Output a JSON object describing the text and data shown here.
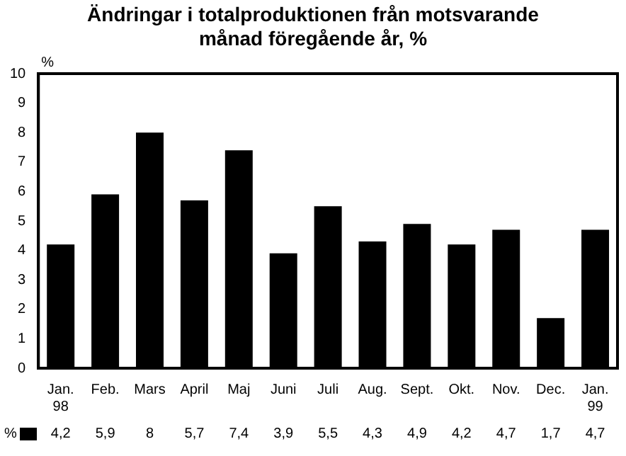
{
  "chart_data": {
    "type": "bar",
    "title": "Ändringar i totalproduktionen från motsvarande månad föregående år, %",
    "ylabel": "%",
    "categories": [
      "Jan.\n98",
      "Feb.",
      "Mars",
      "April",
      "Maj",
      "Juni",
      "Juli",
      "Aug.",
      "Sept.",
      "Okt.",
      "Nov.",
      "Dec.",
      "Jan.\n99"
    ],
    "series": [
      {
        "name": "%",
        "color": "#000000",
        "values": [
          4.2,
          5.9,
          8,
          5.7,
          7.4,
          3.9,
          5.5,
          4.3,
          4.9,
          4.2,
          4.7,
          1.7,
          4.7
        ],
        "value_labels": [
          "4,2",
          "5,9",
          "8",
          "5,7",
          "7,4",
          "3,9",
          "5,5",
          "4,3",
          "4,9",
          "4,2",
          "4,7",
          "1,7",
          "4,7"
        ]
      }
    ],
    "ylim": [
      0,
      10
    ],
    "yticks": [
      0,
      1,
      2,
      3,
      4,
      5,
      6,
      7,
      8,
      9,
      10
    ],
    "grid": false
  }
}
